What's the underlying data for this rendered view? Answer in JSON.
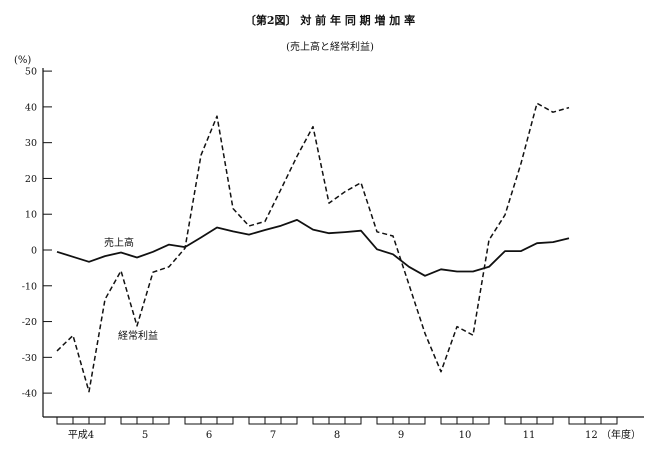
{
  "chart_data": {
    "type": "line",
    "title": "〔第2図〕 対 前 年 同 期 増 加 率",
    "subtitle": "(売上高と経常利益)",
    "ylabel": "(%)",
    "xlabel": "",
    "ylim": [
      -40,
      50
    ],
    "yticks": [
      50,
      40,
      30,
      20,
      10,
      0,
      -10,
      -20,
      -30,
      -40
    ],
    "grid": false,
    "x_unit": "quarter",
    "x_start": "平成4 Q1",
    "x_end": "平成12 Q1",
    "year_labels": [
      "平成4",
      "5",
      "6",
      "7",
      "8",
      "9",
      "10",
      "11",
      "12"
    ],
    "year_suffix": "（年度）",
    "series": [
      {
        "name": "売上高",
        "style": "solid",
        "color": "#111111",
        "values": [
          -0.5,
          -1.9,
          -3.3,
          -1.7,
          -0.7,
          -2.1,
          -0.5,
          1.5,
          0.8,
          3.5,
          6.3,
          5.2,
          4.3,
          5.6,
          6.8,
          8.4,
          5.7,
          4.7,
          5.0,
          5.4,
          0.2,
          -1.2,
          -4.7,
          -7.2,
          -5.4,
          -6.0,
          -6.0,
          -4.7,
          -0.3,
          -0.3,
          1.9,
          2.2,
          3.3
        ]
      },
      {
        "name": "経常利益",
        "style": "dashed",
        "color": "#111111",
        "values": [
          -28.2,
          -23.9,
          -39.6,
          -13.8,
          -5.8,
          -21.2,
          -6.2,
          -4.7,
          0.5,
          26.5,
          37.4,
          11.6,
          6.7,
          8.0,
          17.0,
          26.2,
          34.5,
          13.1,
          16.3,
          18.8,
          5.1,
          3.9,
          -9.7,
          -23.3,
          -34.0,
          -21.4,
          -23.8,
          2.8,
          9.8,
          24.2,
          41.0,
          38.5,
          39.8
        ]
      }
    ]
  }
}
